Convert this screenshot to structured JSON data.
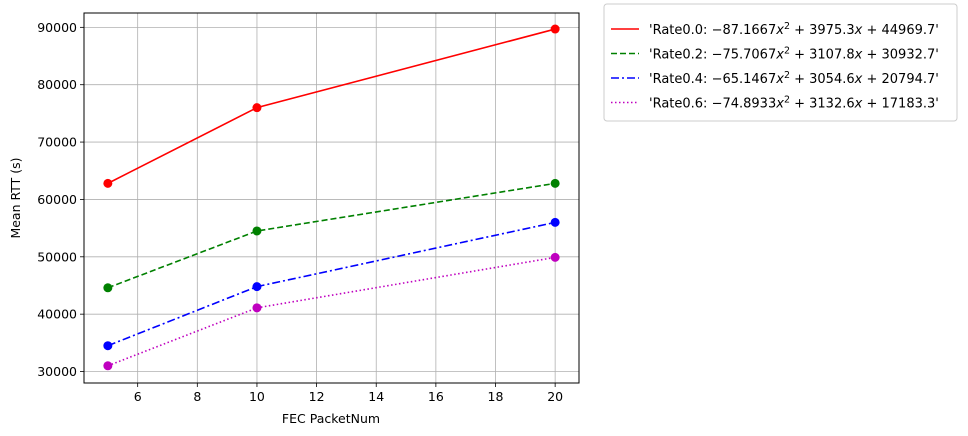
{
  "chart_data": {
    "type": "line",
    "xlabel": "FEC PacketNum",
    "ylabel": "Mean RTT (s)",
    "xlim": [
      4.2,
      20.8
    ],
    "ylim": [
      28000,
      92500
    ],
    "x_ticks": [
      6,
      8,
      10,
      12,
      14,
      16,
      18,
      20
    ],
    "y_ticks": [
      30000,
      40000,
      50000,
      60000,
      70000,
      80000,
      90000
    ],
    "grid": true,
    "legend_position": "outside-top-right",
    "x": [
      5,
      10,
      20
    ],
    "series": [
      {
        "name": "'Rate0.0: −87.1667x² + 3975.3x + 44969.7'",
        "legend": {
          "prefix": "'Rate0.0: ",
          "coef": "−87.1667",
          "rest": " + 3975.3",
          "const": " + 44969.7'"
        },
        "values": [
          62800,
          76000,
          89700
        ],
        "color": "#ff0000",
        "linestyle": "solid"
      },
      {
        "name": "'Rate0.2: −75.7067x² + 3107.8x + 30932.7'",
        "legend": {
          "prefix": "'Rate0.2: ",
          "coef": "−75.7067",
          "rest": " + 3107.8",
          "const": " + 30932.7'"
        },
        "values": [
          44600,
          54500,
          62800
        ],
        "color": "#008000",
        "linestyle": "dashed"
      },
      {
        "name": "'Rate0.4: −65.1467x² + 3054.6x + 20794.7'",
        "legend": {
          "prefix": "'Rate0.4: ",
          "coef": "−65.1467",
          "rest": " + 3054.6",
          "const": " + 20794.7'"
        },
        "values": [
          34500,
          44800,
          56000
        ],
        "color": "#0000ff",
        "linestyle": "dashdot"
      },
      {
        "name": "'Rate0.6: −74.8933x² + 3132.6x + 17183.3'",
        "legend": {
          "prefix": "'Rate0.6: ",
          "coef": "−74.8933",
          "rest": " + 3132.6",
          "const": " + 17183.3'"
        },
        "values": [
          31000,
          41100,
          49900
        ],
        "color": "#bf00bf",
        "linestyle": "dotted"
      }
    ]
  }
}
